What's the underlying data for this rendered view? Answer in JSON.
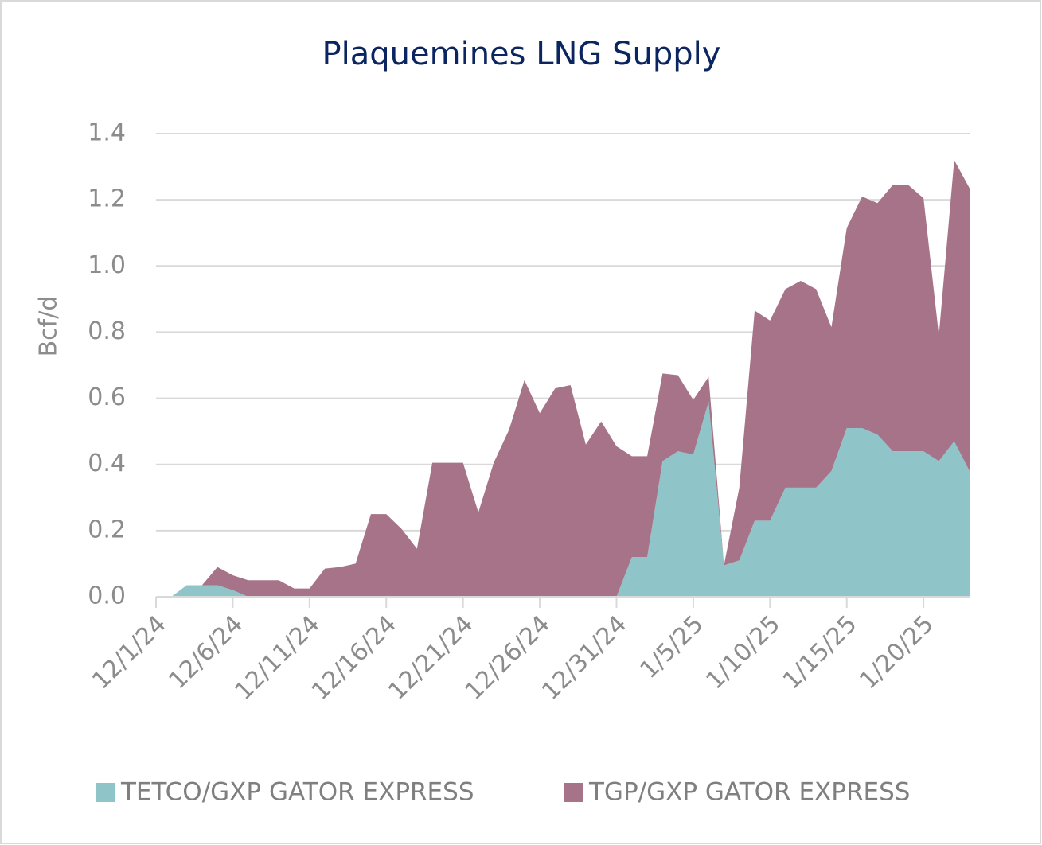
{
  "chart_data": {
    "type": "stacked-area",
    "title": "Plaquemines LNG Supply",
    "y_label": "Bcf/d",
    "x": [
      "12/1/24",
      "12/2/24",
      "12/3/24",
      "12/4/24",
      "12/5/24",
      "12/6/24",
      "12/7/24",
      "12/8/24",
      "12/9/24",
      "12/10/24",
      "12/11/24",
      "12/12/24",
      "12/13/24",
      "12/14/24",
      "12/15/24",
      "12/16/24",
      "12/17/24",
      "12/18/24",
      "12/19/24",
      "12/20/24",
      "12/21/24",
      "12/22/24",
      "12/23/24",
      "12/24/24",
      "12/25/24",
      "12/26/24",
      "12/27/24",
      "12/28/24",
      "12/29/24",
      "12/30/24",
      "12/31/24",
      "1/1/25",
      "1/2/25",
      "1/3/25",
      "1/4/25",
      "1/5/25",
      "1/6/25",
      "1/7/25",
      "1/8/25",
      "1/9/25",
      "1/10/25",
      "1/11/25",
      "1/12/25",
      "1/13/25",
      "1/14/25",
      "1/15/25",
      "1/16/25",
      "1/17/25",
      "1/18/25",
      "1/19/25",
      "1/20/25",
      "1/21/25",
      "1/22/25",
      "1/23/25"
    ],
    "xticks": [
      "12/1/24",
      "12/6/24",
      "12/11/24",
      "12/16/24",
      "12/21/24",
      "12/26/24",
      "12/31/24",
      "1/5/25",
      "1/10/25",
      "1/15/25",
      "1/20/25"
    ],
    "series": [
      {
        "name": "TETCO/GXP GATOR EXPRESS",
        "color": "#8fc5c8",
        "values": [
          0,
          0,
          0.035,
          0.035,
          0.035,
          0.02,
          0,
          0,
          0,
          0,
          0,
          0,
          0,
          0,
          0,
          0,
          0,
          0,
          0,
          0,
          0,
          0,
          0,
          0,
          0,
          0,
          0,
          0,
          0,
          0,
          0,
          0.12,
          0.12,
          0.41,
          0.44,
          0.43,
          0.59,
          0.095,
          0.11,
          0.23,
          0.23,
          0.33,
          0.33,
          0.33,
          0.38,
          0.51,
          0.51,
          0.49,
          0.44,
          0.44,
          0.44,
          0.41,
          0.47,
          0.38
        ]
      },
      {
        "name": "TGP/GXP GATOR EXPRESS",
        "color": "#a67388",
        "values": [
          0,
          0,
          0,
          0,
          0.055,
          0.045,
          0.05,
          0.05,
          0.05,
          0.025,
          0.025,
          0.085,
          0.09,
          0.1,
          0.25,
          0.25,
          0.205,
          0.145,
          0.405,
          0.405,
          0.405,
          0.255,
          0.405,
          0.505,
          0.655,
          0.555,
          0.63,
          0.64,
          0.46,
          0.53,
          0.455,
          0.305,
          0.305,
          0.265,
          0.23,
          0.165,
          0.075,
          0,
          0.22,
          0.635,
          0.605,
          0.6,
          0.625,
          0.6,
          0.435,
          0.605,
          0.7,
          0.7,
          0.805,
          0.805,
          0.765,
          0.38,
          0.85,
          0.855
        ]
      }
    ],
    "ylim": [
      0,
      1.4
    ],
    "yticks": [
      {
        "value": 0,
        "label": "0.0"
      },
      0.2,
      0.4,
      0.6,
      0.8,
      {
        "value": 1,
        "label": "1.0"
      },
      1.2,
      1.4
    ],
    "grid": true,
    "legend": "bottom"
  }
}
